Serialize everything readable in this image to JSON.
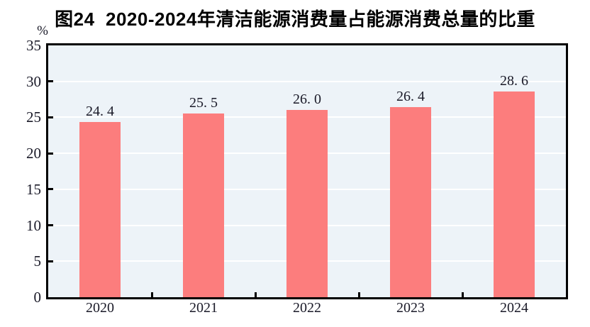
{
  "chart_data": {
    "type": "bar",
    "title": "图24  2020-2024年清洁能源消费量占能源消费总量的比重",
    "unit_label": "%",
    "categories": [
      "2020",
      "2021",
      "2022",
      "2023",
      "2024"
    ],
    "values": [
      24.4,
      25.5,
      26.0,
      26.4,
      28.6
    ],
    "value_labels": [
      "24. 4",
      "25. 5",
      "26. 0",
      "26. 4",
      "28. 6"
    ],
    "xlabel": "",
    "ylabel": "",
    "ylim": [
      0,
      35
    ],
    "yticks": [
      0,
      5,
      10,
      15,
      20,
      25,
      30,
      35
    ],
    "grid": "horizontal",
    "legend": "none",
    "colors": {
      "bar": "#FC7D7D",
      "plot_background": "#EDF3F8",
      "gridline": "#FFFFFF",
      "axis": "#000000",
      "text": "#1A1A28",
      "title": "#000000"
    }
  }
}
